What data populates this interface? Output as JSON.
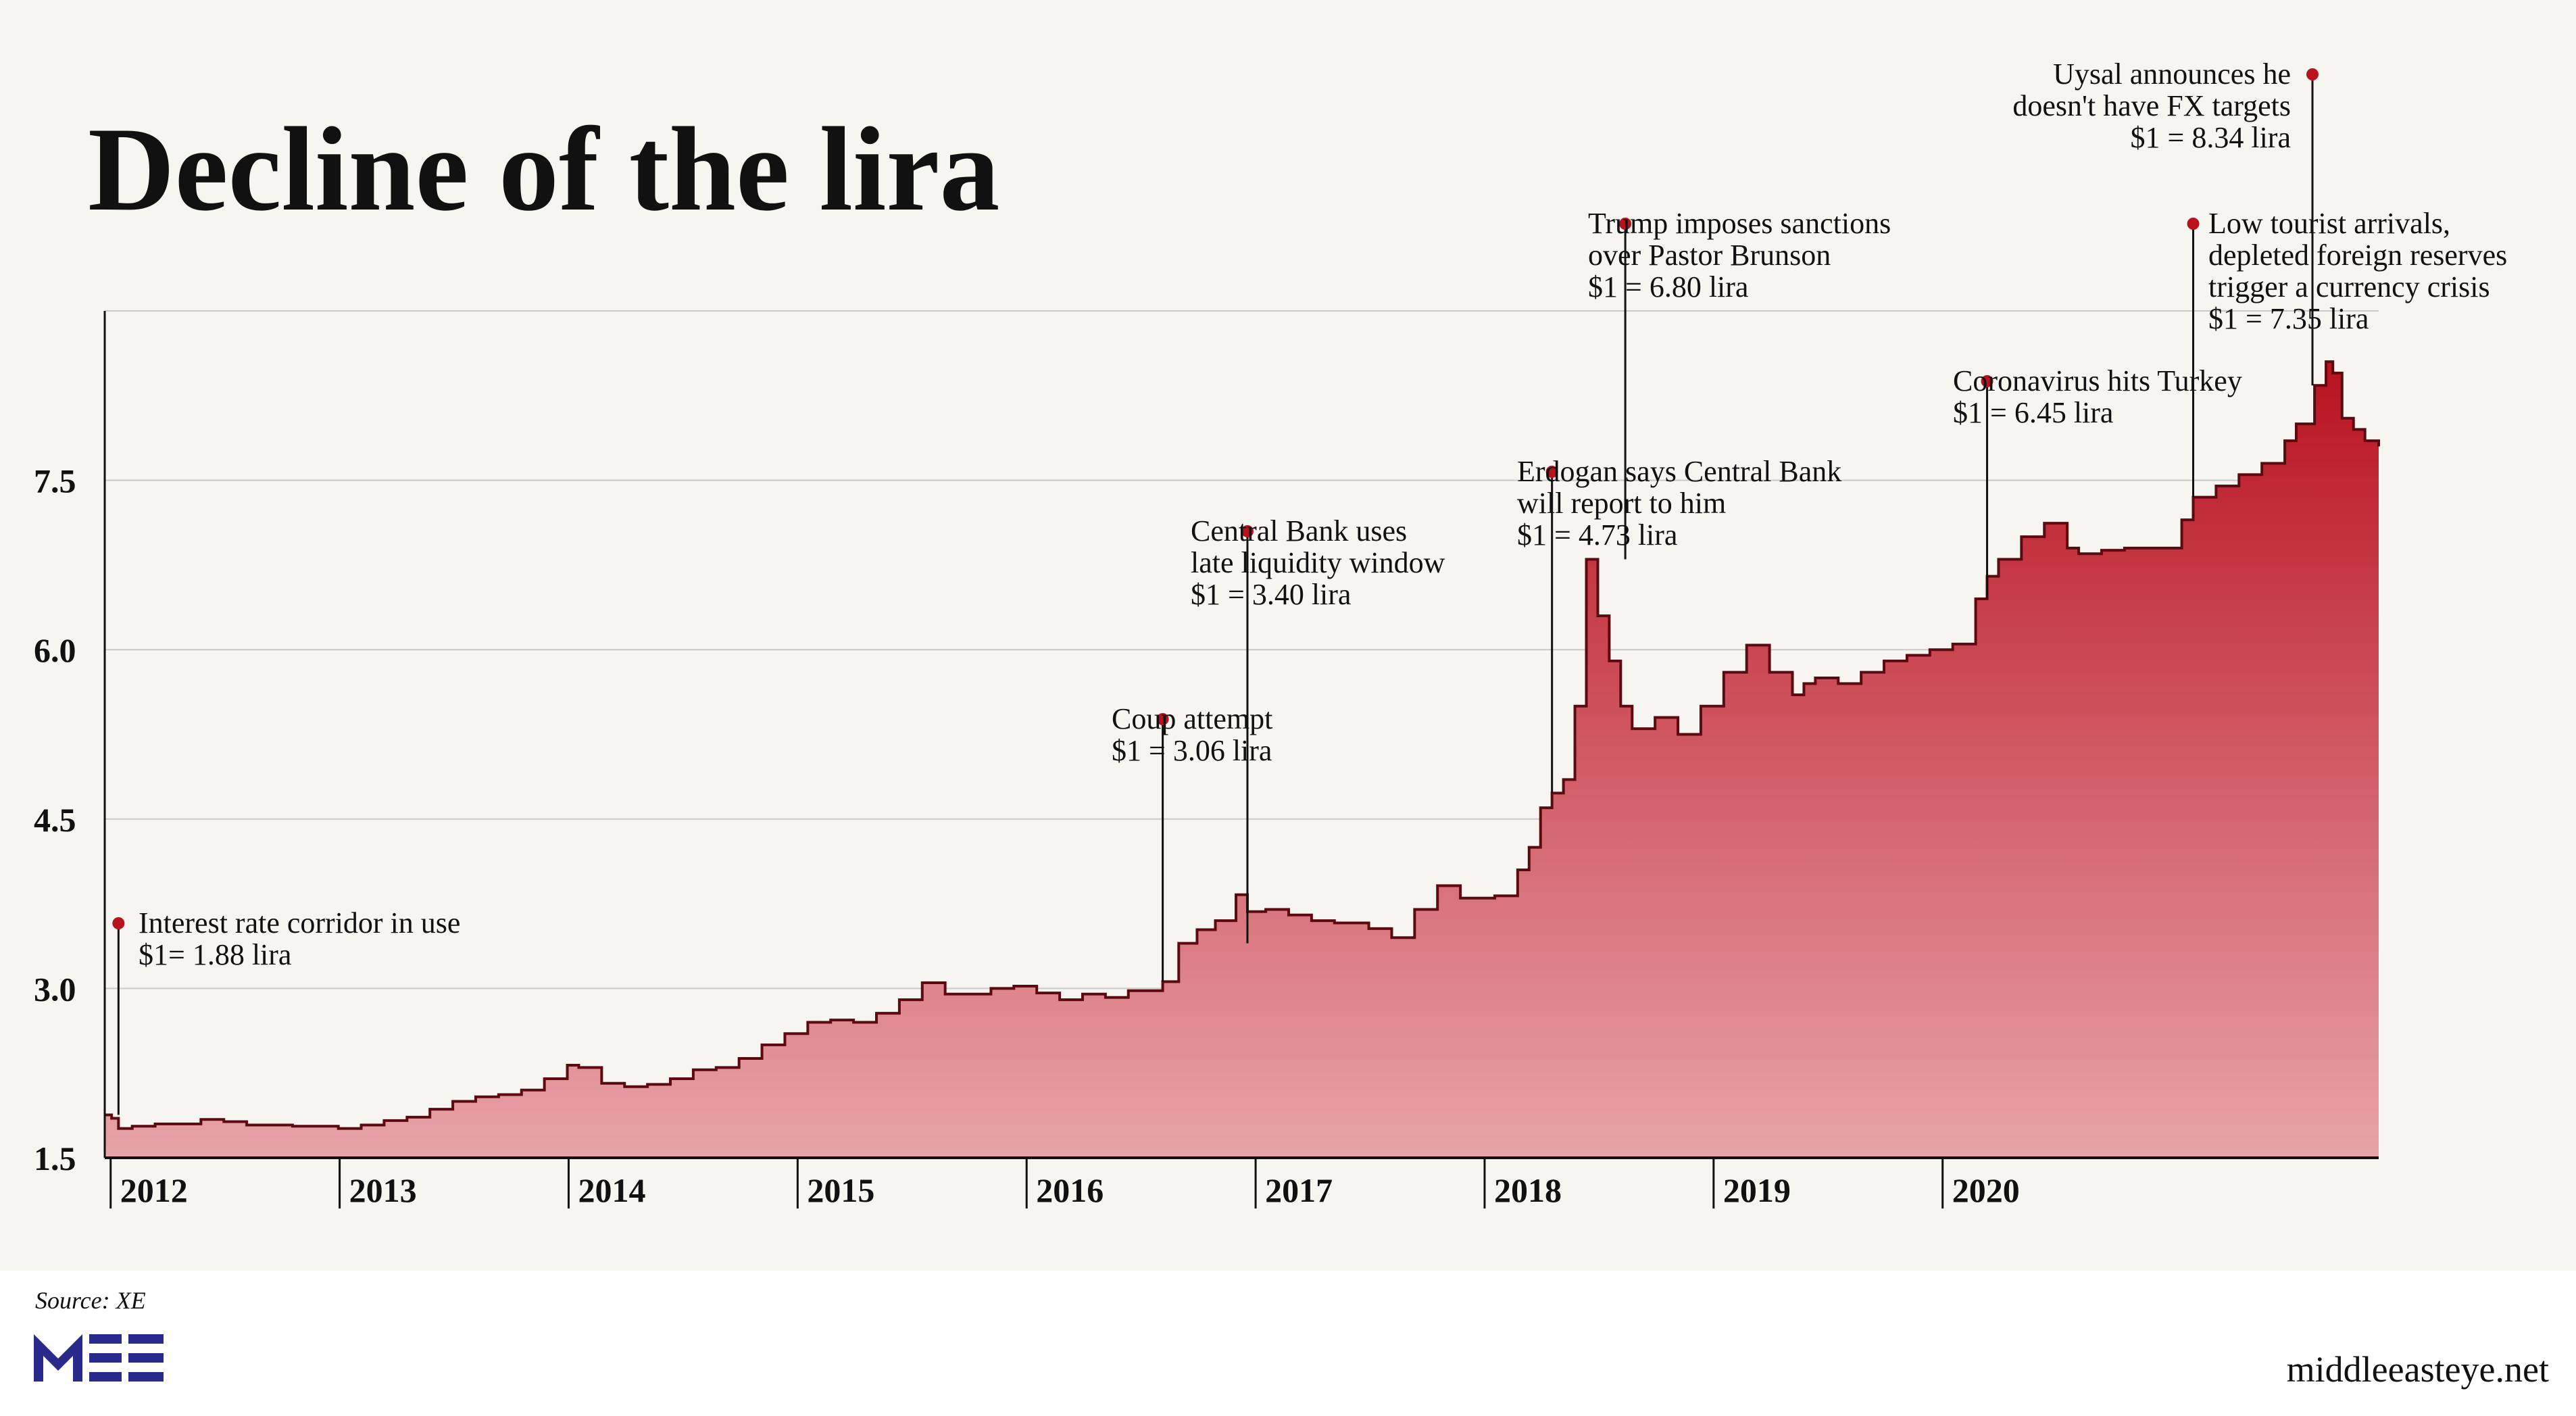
{
  "chart_data": {
    "type": "area",
    "title": "Decline of the lira",
    "source": "Source: XE",
    "site": "middleeasteye.net",
    "logo_text": "MEE",
    "ylim": [
      1.5,
      9.0
    ],
    "yticks": [
      1.5,
      3.0,
      4.5,
      6.0,
      7.5
    ],
    "ytick_labels": [
      "1.5",
      "3.0",
      "4.5",
      "6.0",
      "7.5"
    ],
    "xlim": [
      2011.93,
      2021.86
    ],
    "xticks": [
      2012,
      2013,
      2014,
      2015,
      2016,
      2017,
      2018,
      2019,
      2020
    ],
    "xtick_labels": [
      "2012",
      "2013",
      "2014",
      "2015",
      "2016",
      "2017",
      "2018",
      "2019",
      "2020"
    ],
    "grid": true,
    "colors": {
      "fill_top": "#b8121f",
      "fill_bottom": "#e8a3aa",
      "line": "#5c0a10",
      "dot": "#b8121f",
      "grid": "#c9c9c9"
    },
    "series": [
      {
        "x": [
          2011.93,
          2011.96,
          2011.99,
          2012.05,
          2012.15,
          2012.25,
          2012.35,
          2012.45,
          2012.55,
          2012.65,
          2012.75,
          2012.85,
          2012.95,
          2013.05,
          2013.15,
          2013.25,
          2013.35,
          2013.45,
          2013.55,
          2013.65,
          2013.75,
          2013.85,
          2013.95,
          2014.0,
          2014.1,
          2014.2,
          2014.3,
          2014.4,
          2014.5,
          2014.6,
          2014.7,
          2014.8,
          2014.9,
          2015.0,
          2015.1,
          2015.2,
          2015.3,
          2015.4,
          2015.5,
          2015.6,
          2015.7,
          2015.8,
          2015.9,
          2016.0,
          2016.1,
          2016.2,
          2016.3,
          2016.4,
          2016.5,
          2016.55,
          2016.62,
          2016.7,
          2016.78,
          2016.87,
          2016.92,
          2017.0,
          2017.1,
          2017.2,
          2017.3,
          2017.45,
          2017.55,
          2017.65,
          2017.75,
          2017.85,
          2017.95,
          2018.0,
          2018.1,
          2018.15,
          2018.2,
          2018.25,
          2018.3,
          2018.35,
          2018.4,
          2018.45,
          2018.5,
          2018.55,
          2018.6,
          2018.7,
          2018.8,
          2018.9,
          2019.0,
          2019.1,
          2019.2,
          2019.3,
          2019.35,
          2019.4,
          2019.5,
          2019.6,
          2019.7,
          2019.8,
          2019.9,
          2020.0,
          2020.1,
          2020.15,
          2020.2,
          2020.3,
          2020.4,
          2020.5,
          2020.55,
          2020.65,
          2020.75,
          2020.85,
          2020.95,
          2021.0,
          2021.05,
          2021.15,
          2021.25,
          2021.35,
          2021.45,
          2021.5,
          2021.58,
          2021.63,
          2021.66,
          2021.7,
          2021.75,
          2021.8,
          2021.86
        ],
        "values": [
          1.88,
          1.85,
          1.76,
          1.78,
          1.8,
          1.8,
          1.84,
          1.82,
          1.79,
          1.79,
          1.78,
          1.78,
          1.76,
          1.79,
          1.83,
          1.86,
          1.93,
          2.0,
          2.04,
          2.06,
          2.1,
          2.2,
          2.32,
          2.3,
          2.16,
          2.13,
          2.15,
          2.2,
          2.28,
          2.3,
          2.38,
          2.5,
          2.6,
          2.7,
          2.72,
          2.7,
          2.78,
          2.9,
          3.05,
          2.95,
          2.95,
          3.0,
          3.02,
          2.96,
          2.9,
          2.95,
          2.92,
          2.98,
          2.98,
          3.06,
          3.4,
          3.52,
          3.6,
          3.83,
          3.68,
          3.7,
          3.65,
          3.6,
          3.58,
          3.53,
          3.45,
          3.7,
          3.91,
          3.8,
          3.8,
          3.82,
          4.05,
          4.25,
          4.6,
          4.73,
          4.85,
          5.5,
          6.8,
          6.3,
          5.9,
          5.5,
          5.3,
          5.4,
          5.25,
          5.5,
          5.8,
          6.04,
          5.8,
          5.6,
          5.7,
          5.75,
          5.7,
          5.8,
          5.9,
          5.95,
          6.0,
          6.05,
          6.45,
          6.65,
          6.8,
          7.0,
          7.12,
          6.9,
          6.85,
          6.88,
          6.9,
          6.9,
          6.9,
          7.15,
          7.35,
          7.45,
          7.55,
          7.65,
          7.85,
          8.0,
          8.34,
          8.55,
          8.45,
          8.05,
          7.95,
          7.85,
          7.8
        ]
      }
    ],
    "annotations": [
      {
        "lines": [
          "Interest rate corridor in use",
          "$1= 1.88 lira"
        ],
        "x": 2011.99,
        "y": 1.88,
        "align": "left"
      },
      {
        "lines": [
          "Coup attempt",
          "$1 = 3.06 lira"
        ],
        "x": 2016.55,
        "y": 3.06,
        "align": "left"
      },
      {
        "lines": [
          "Central Bank uses",
          "late liquidity window",
          "$1 = 3.40 lira"
        ],
        "x": 2016.92,
        "y": 3.4,
        "align": "left"
      },
      {
        "lines": [
          "Erdogan says Central Bank",
          "will report to him",
          "$1 = 4.73 lira"
        ],
        "x": 2018.25,
        "y": 4.73,
        "align": "left"
      },
      {
        "lines": [
          "Trump imposes sanctions",
          "over Pastor Brunson",
          "$1 = 6.80 lira"
        ],
        "x": 2018.57,
        "y": 6.8,
        "align": "left"
      },
      {
        "lines": [
          "Coronavirus hits Turkey",
          "$1 = 6.45 lira"
        ],
        "x": 2020.15,
        "y": 6.45,
        "align": "left"
      },
      {
        "lines": [
          "Low tourist arrivals,",
          "depleted foreign reserves",
          "trigger a currency crisis",
          "$1 = 7.35 lira"
        ],
        "x": 2021.05,
        "y": 7.35,
        "align": "left"
      },
      {
        "lines": [
          "Uysal announces he",
          "doesn't have FX targets",
          "$1 = 8.34 lira"
        ],
        "x": 2021.58,
        "y": 8.34,
        "align": "right"
      }
    ]
  }
}
